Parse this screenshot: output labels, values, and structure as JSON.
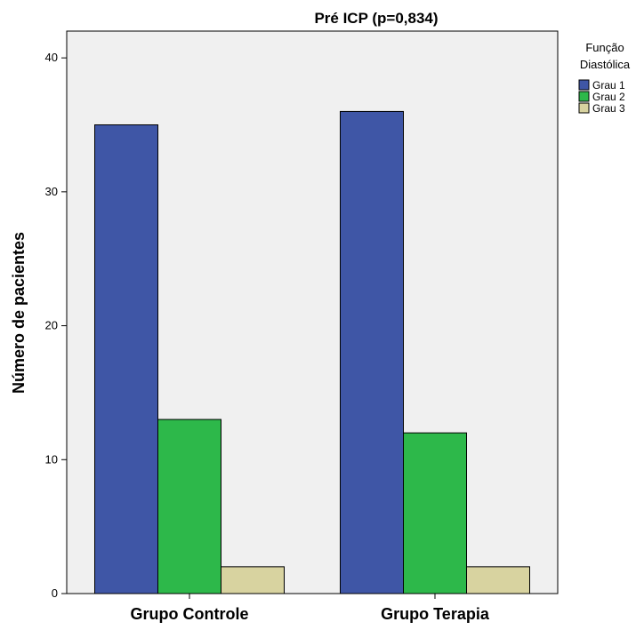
{
  "chart_data": {
    "type": "bar",
    "title": "Pré ICP (p=0,834)",
    "xlabel": "",
    "ylabel": "Número de pacientes",
    "categories": [
      "Grupo Controle",
      "Grupo Terapia"
    ],
    "series": [
      {
        "name": "Grau 1",
        "values": [
          35,
          36
        ],
        "color": "#3f56a6"
      },
      {
        "name": "Grau 2",
        "values": [
          13,
          12
        ],
        "color": "#2db84a"
      },
      {
        "name": "Grau 3",
        "values": [
          2,
          2
        ],
        "color": "#d8d3a0"
      }
    ],
    "ylim": [
      0,
      42
    ],
    "yticks": [
      0,
      10,
      20,
      30,
      40
    ],
    "grid": false,
    "legend": {
      "title_line1": "Função",
      "title_line2": "Diastólica",
      "placement": "right"
    },
    "plot_background": "#f0f0f0"
  }
}
